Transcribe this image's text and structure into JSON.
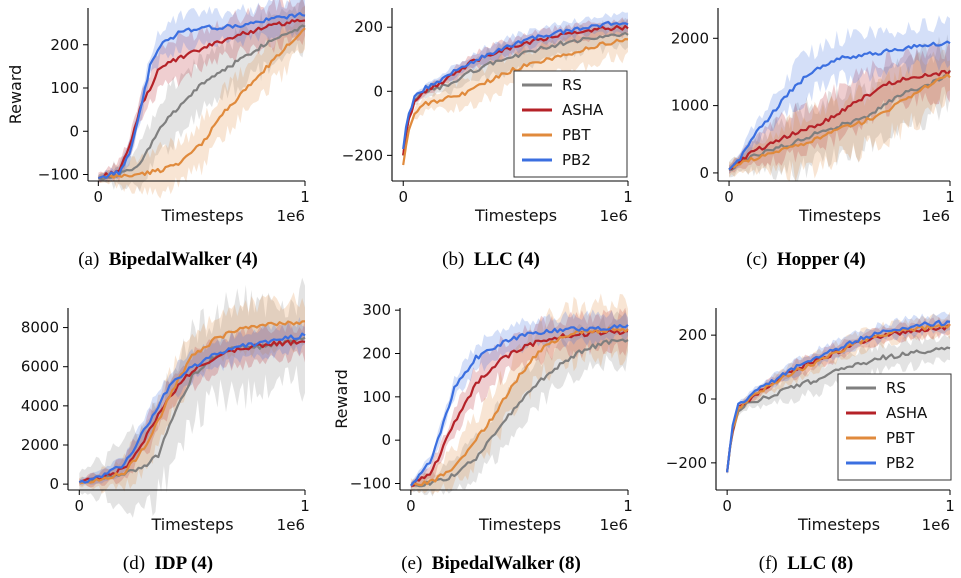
{
  "chart_data": [
    {
      "type": "line",
      "caption_prefix": "(a)",
      "caption_name": "BipedalWalker (4)",
      "xlabel": "Timesteps",
      "ylabel": "Reward",
      "x_offset_label": "1e6",
      "xlim": [
        -0.05,
        1.0
      ],
      "ylim": [
        -115,
        285
      ],
      "xticks": [
        0,
        1
      ],
      "xtick_labels": [
        "0",
        "1"
      ],
      "yticks": [
        -100,
        0,
        100,
        200
      ],
      "ytick_labels": [
        "−100",
        "0",
        "100",
        "200"
      ],
      "legend": false,
      "series": [
        {
          "name": "RS",
          "color": "#7f7f7f",
          "x": [
            0,
            0.1,
            0.2,
            0.3,
            0.4,
            0.5,
            0.6,
            0.7,
            0.8,
            0.9,
            1.0
          ],
          "y": [
            -108,
            -100,
            -80,
            10,
            60,
            110,
            140,
            170,
            200,
            225,
            245
          ],
          "band": 60
        },
        {
          "name": "ASHA",
          "color": "#b52228",
          "x": [
            0,
            0.1,
            0.15,
            0.2,
            0.3,
            0.4,
            0.5,
            0.6,
            0.7,
            0.8,
            0.9,
            1.0
          ],
          "y": [
            -108,
            -90,
            -40,
            50,
            150,
            170,
            190,
            210,
            225,
            240,
            250,
            255
          ],
          "band": 45
        },
        {
          "name": "PBT",
          "color": "#e08a3c",
          "x": [
            0,
            0.2,
            0.3,
            0.4,
            0.5,
            0.6,
            0.7,
            0.8,
            0.9,
            1.0
          ],
          "y": [
            -108,
            -100,
            -90,
            -70,
            -30,
            40,
            90,
            140,
            190,
            240
          ],
          "band": 50
        },
        {
          "name": "PB2",
          "color": "#3b6fe0",
          "x": [
            0,
            0.1,
            0.15,
            0.2,
            0.25,
            0.3,
            0.4,
            0.5,
            0.6,
            0.7,
            0.8,
            0.9,
            1.0
          ],
          "y": [
            -108,
            -95,
            -50,
            40,
            150,
            200,
            230,
            240,
            240,
            245,
            255,
            265,
            270
          ],
          "band": 35
        }
      ]
    },
    {
      "type": "line",
      "caption_prefix": "(b)",
      "caption_name": "LLC (4)",
      "xlabel": "Timesteps",
      "ylabel": "",
      "x_offset_label": "1e6",
      "xlim": [
        -0.05,
        1.0
      ],
      "ylim": [
        -280,
        260
      ],
      "xticks": [
        0,
        1
      ],
      "xtick_labels": [
        "0",
        "1"
      ],
      "yticks": [
        -200,
        0,
        200
      ],
      "ytick_labels": [
        "−200",
        "0",
        "200"
      ],
      "legend": true,
      "series": [
        {
          "name": "RS",
          "color": "#7f7f7f",
          "x": [
            0,
            0.02,
            0.05,
            0.1,
            0.2,
            0.3,
            0.4,
            0.5,
            0.6,
            0.7,
            0.8,
            0.9,
            1.0
          ],
          "y": [
            -200,
            -100,
            -30,
            0,
            20,
            60,
            90,
            110,
            130,
            150,
            160,
            170,
            180
          ],
          "band": 40
        },
        {
          "name": "ASHA",
          "color": "#b52228",
          "x": [
            0,
            0.02,
            0.05,
            0.1,
            0.2,
            0.3,
            0.4,
            0.5,
            0.6,
            0.7,
            0.8,
            0.9,
            1.0
          ],
          "y": [
            -200,
            -100,
            -30,
            0,
            40,
            90,
            120,
            140,
            160,
            175,
            185,
            195,
            200
          ],
          "band": 25
        },
        {
          "name": "PBT",
          "color": "#e08a3c",
          "x": [
            0,
            0.02,
            0.05,
            0.1,
            0.2,
            0.3,
            0.4,
            0.5,
            0.6,
            0.7,
            0.8,
            0.9,
            1.0
          ],
          "y": [
            -230,
            -130,
            -70,
            -40,
            -20,
            0,
            40,
            70,
            90,
            110,
            130,
            150,
            160
          ],
          "band": 50
        },
        {
          "name": "PB2",
          "color": "#3b6fe0",
          "x": [
            0,
            0.02,
            0.05,
            0.1,
            0.2,
            0.3,
            0.4,
            0.5,
            0.6,
            0.7,
            0.8,
            0.9,
            1.0
          ],
          "y": [
            -180,
            -80,
            -20,
            10,
            50,
            90,
            120,
            150,
            170,
            185,
            200,
            210,
            215
          ],
          "band": 25
        }
      ]
    },
    {
      "type": "line",
      "caption_prefix": "(c)",
      "caption_name": "Hopper (4)",
      "xlabel": "Timesteps",
      "ylabel": "",
      "x_offset_label": "1e6",
      "xlim": [
        -0.05,
        1.0
      ],
      "ylim": [
        -120,
        2450
      ],
      "xticks": [
        0,
        1
      ],
      "xtick_labels": [
        "0",
        "1"
      ],
      "yticks": [
        0,
        1000,
        2000
      ],
      "ytick_labels": [
        "0",
        "1000",
        "2000"
      ],
      "legend": false,
      "series": [
        {
          "name": "RS",
          "color": "#7f7f7f",
          "x": [
            0,
            0.1,
            0.2,
            0.3,
            0.4,
            0.5,
            0.6,
            0.7,
            0.8,
            0.9,
            1.0
          ],
          "y": [
            50,
            250,
            350,
            450,
            600,
            700,
            800,
            1000,
            1200,
            1300,
            1500
          ],
          "band": 450
        },
        {
          "name": "ASHA",
          "color": "#b52228",
          "x": [
            0,
            0.1,
            0.2,
            0.3,
            0.4,
            0.5,
            0.6,
            0.7,
            0.8,
            0.9,
            1.0
          ],
          "y": [
            50,
            300,
            450,
            600,
            700,
            900,
            1100,
            1300,
            1400,
            1450,
            1500
          ],
          "band": 350
        },
        {
          "name": "PBT",
          "color": "#e08a3c",
          "x": [
            0,
            0.1,
            0.2,
            0.3,
            0.4,
            0.5,
            0.6,
            0.7,
            0.8,
            0.9,
            1.0
          ],
          "y": [
            50,
            200,
            300,
            400,
            500,
            650,
            750,
            900,
            1100,
            1300,
            1450
          ],
          "band": 400
        },
        {
          "name": "PB2",
          "color": "#3b6fe0",
          "x": [
            0,
            0.05,
            0.1,
            0.2,
            0.3,
            0.4,
            0.5,
            0.6,
            0.7,
            0.8,
            0.9,
            1.0
          ],
          "y": [
            50,
            200,
            500,
            900,
            1300,
            1550,
            1700,
            1750,
            1800,
            1850,
            1900,
            1950
          ],
          "band": 300
        }
      ]
    },
    {
      "type": "line",
      "caption_prefix": "(d)",
      "caption_name": "IDP (4)",
      "xlabel": "Timesteps",
      "ylabel": "",
      "x_offset_label": "1e6",
      "xlim": [
        -0.05,
        1.0
      ],
      "ylim": [
        -300,
        9000
      ],
      "xticks": [
        0,
        1
      ],
      "xtick_labels": [
        "0",
        "1"
      ],
      "yticks": [
        0,
        2000,
        4000,
        6000,
        8000
      ],
      "ytick_labels": [
        "0",
        "2000",
        "4000",
        "6000",
        "8000"
      ],
      "legend": false,
      "series": [
        {
          "name": "RS",
          "color": "#7f7f7f",
          "x": [
            0,
            0.1,
            0.2,
            0.3,
            0.35,
            0.4,
            0.5,
            0.6,
            0.7,
            0.8,
            0.9,
            1.0
          ],
          "y": [
            100,
            300,
            500,
            1000,
            1500,
            3000,
            5500,
            6500,
            7000,
            7000,
            7200,
            7400
          ],
          "band": 2200
        },
        {
          "name": "ASHA",
          "color": "#b52228",
          "x": [
            0,
            0.1,
            0.2,
            0.3,
            0.4,
            0.5,
            0.6,
            0.7,
            0.8,
            0.9,
            1.0
          ],
          "y": [
            100,
            300,
            800,
            2500,
            4500,
            5800,
            6500,
            6900,
            7100,
            7200,
            7300
          ],
          "band": 800
        },
        {
          "name": "PBT",
          "color": "#e08a3c",
          "x": [
            0,
            0.1,
            0.2,
            0.3,
            0.4,
            0.5,
            0.6,
            0.7,
            0.8,
            0.9,
            1.0
          ],
          "y": [
            100,
            200,
            600,
            2000,
            4500,
            6500,
            7400,
            7900,
            8100,
            8200,
            8300
          ],
          "band": 1100
        },
        {
          "name": "PB2",
          "color": "#3b6fe0",
          "x": [
            0,
            0.1,
            0.2,
            0.3,
            0.4,
            0.5,
            0.6,
            0.7,
            0.8,
            0.9,
            1.0
          ],
          "y": [
            100,
            400,
            1000,
            3000,
            5000,
            6000,
            6600,
            7000,
            7200,
            7400,
            7600
          ],
          "band": 700
        }
      ]
    },
    {
      "type": "line",
      "caption_prefix": "(e)",
      "caption_name": "BipedalWalker (8)",
      "xlabel": "Timesteps",
      "ylabel": "Reward",
      "x_offset_label": "1e6",
      "xlim": [
        -0.05,
        1.0
      ],
      "ylim": [
        -115,
        305
      ],
      "xticks": [
        0,
        1
      ],
      "xtick_labels": [
        "0",
        "1"
      ],
      "yticks": [
        -100,
        0,
        100,
        200,
        300
      ],
      "ytick_labels": [
        "−100",
        "0",
        "100",
        "200",
        "300"
      ],
      "legend": false,
      "series": [
        {
          "name": "RS",
          "color": "#7f7f7f",
          "x": [
            0,
            0.1,
            0.2,
            0.3,
            0.4,
            0.5,
            0.6,
            0.7,
            0.8,
            0.9,
            1.0
          ],
          "y": [
            -105,
            -100,
            -80,
            -40,
            20,
            90,
            140,
            180,
            210,
            225,
            230
          ],
          "band": 50
        },
        {
          "name": "ASHA",
          "color": "#b52228",
          "x": [
            0,
            0.1,
            0.2,
            0.3,
            0.4,
            0.5,
            0.6,
            0.7,
            0.8,
            0.9,
            1.0
          ],
          "y": [
            -105,
            -70,
            40,
            130,
            180,
            210,
            230,
            240,
            245,
            250,
            250
          ],
          "band": 40
        },
        {
          "name": "PBT",
          "color": "#e08a3c",
          "x": [
            0,
            0.1,
            0.2,
            0.3,
            0.4,
            0.5,
            0.6,
            0.7,
            0.8,
            0.9,
            1.0
          ],
          "y": [
            -105,
            -95,
            -60,
            0,
            70,
            150,
            210,
            240,
            250,
            255,
            255
          ],
          "band": 60
        },
        {
          "name": "PB2",
          "color": "#3b6fe0",
          "x": [
            0,
            0.1,
            0.15,
            0.2,
            0.3,
            0.4,
            0.5,
            0.6,
            0.7,
            0.8,
            0.9,
            1.0
          ],
          "y": [
            -105,
            -40,
            40,
            120,
            190,
            220,
            240,
            250,
            255,
            258,
            260,
            262
          ],
          "band": 30
        }
      ]
    },
    {
      "type": "line",
      "caption_prefix": "(f)",
      "caption_name": "LLC (8)",
      "xlabel": "Timesteps",
      "ylabel": "",
      "x_offset_label": "1e6",
      "xlim": [
        -0.05,
        1.0
      ],
      "ylim": [
        -285,
        285
      ],
      "xticks": [
        0,
        1
      ],
      "xtick_labels": [
        "0",
        "1"
      ],
      "yticks": [
        -200,
        0,
        200
      ],
      "ytick_labels": [
        "−200",
        "0",
        "200"
      ],
      "legend": true,
      "series": [
        {
          "name": "RS",
          "color": "#7f7f7f",
          "x": [
            0,
            0.02,
            0.05,
            0.1,
            0.2,
            0.3,
            0.4,
            0.5,
            0.6,
            0.7,
            0.8,
            0.9,
            1.0
          ],
          "y": [
            -230,
            -120,
            -40,
            -10,
            10,
            40,
            60,
            90,
            110,
            130,
            140,
            150,
            160
          ],
          "band": 40
        },
        {
          "name": "ASHA",
          "color": "#b52228",
          "x": [
            0,
            0.02,
            0.05,
            0.1,
            0.2,
            0.3,
            0.4,
            0.5,
            0.6,
            0.7,
            0.8,
            0.9,
            1.0
          ],
          "y": [
            -230,
            -110,
            -30,
            0,
            50,
            90,
            120,
            150,
            180,
            200,
            210,
            220,
            225
          ],
          "band": 25
        },
        {
          "name": "PBT",
          "color": "#e08a3c",
          "x": [
            0,
            0.02,
            0.05,
            0.1,
            0.2,
            0.3,
            0.4,
            0.5,
            0.6,
            0.7,
            0.8,
            0.9,
            1.0
          ],
          "y": [
            -230,
            -110,
            -30,
            0,
            45,
            85,
            115,
            150,
            180,
            200,
            215,
            225,
            230
          ],
          "band": 30
        },
        {
          "name": "PB2",
          "color": "#3b6fe0",
          "x": [
            0,
            0.02,
            0.05,
            0.1,
            0.2,
            0.3,
            0.4,
            0.5,
            0.6,
            0.7,
            0.8,
            0.9,
            1.0
          ],
          "y": [
            -230,
            -100,
            -20,
            10,
            55,
            95,
            130,
            160,
            190,
            210,
            225,
            235,
            240
          ],
          "band": 25
        }
      ]
    }
  ]
}
